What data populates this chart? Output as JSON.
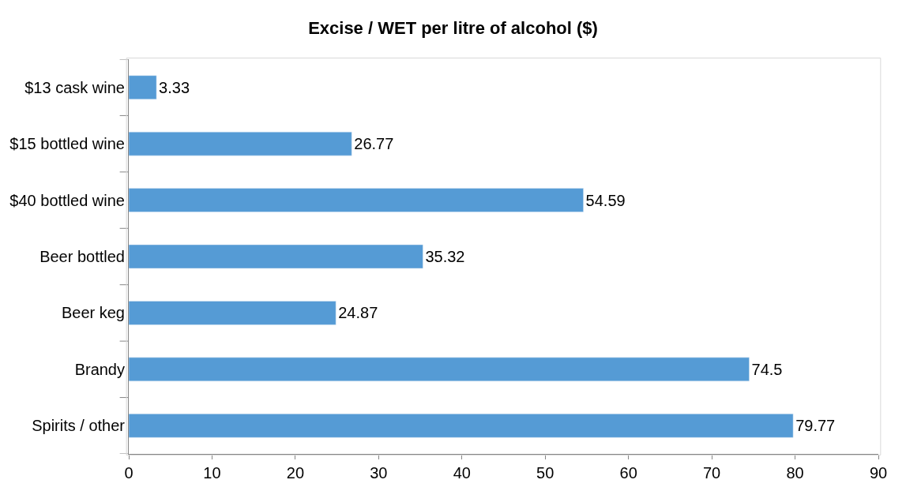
{
  "chart_data": {
    "type": "bar",
    "orientation": "horizontal",
    "title": "Excise / WET per litre of alcohol ($)",
    "categories": [
      "$13 cask wine",
      "$15 bottled wine",
      "$40 bottled wine",
      "Beer bottled",
      "Beer keg",
      "Brandy",
      "Spirits / other"
    ],
    "values": [
      3.33,
      26.77,
      54.59,
      35.32,
      24.87,
      74.5,
      79.77
    ],
    "color": "#559bd5",
    "xlim": [
      0,
      90
    ],
    "xticks": [
      0,
      10,
      20,
      30,
      40,
      50,
      60,
      70,
      80,
      90
    ],
    "data_labels": true
  }
}
